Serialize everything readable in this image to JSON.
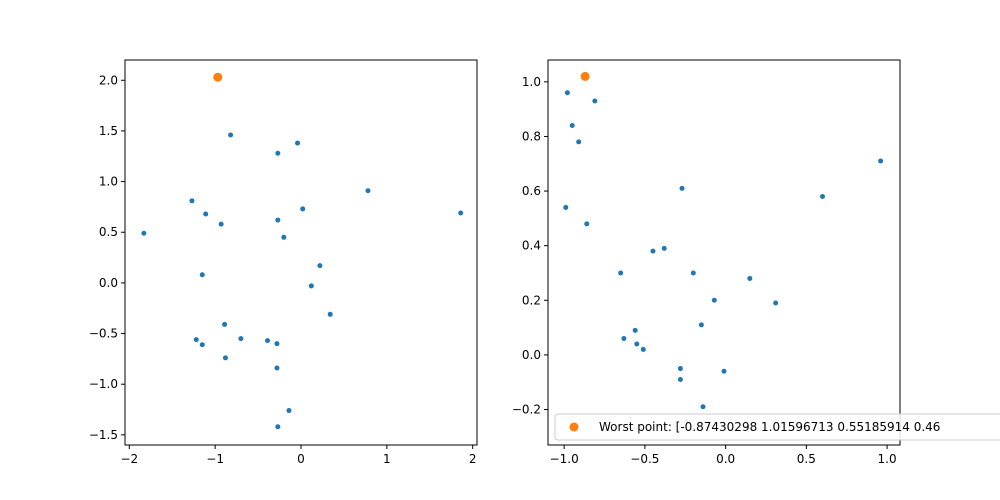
{
  "chart_data": [
    {
      "type": "scatter",
      "xlim": [
        -2.05,
        2.05
      ],
      "ylim": [
        -1.6,
        2.2
      ],
      "x_ticks": [
        -2,
        -1,
        0,
        1,
        2
      ],
      "x_tick_labels": [
        "−2",
        "−1",
        "0",
        "1",
        "2"
      ],
      "y_ticks": [
        -1.5,
        -1.0,
        -0.5,
        0.0,
        0.5,
        1.0,
        1.5,
        2.0
      ],
      "y_tick_labels": [
        "−1.5",
        "−1.0",
        "−0.5",
        "0.0",
        "0.5",
        "1.0",
        "1.5",
        "2.0"
      ],
      "grid": false,
      "series": [
        {
          "color": "#1f77b4",
          "marker": "small-dot",
          "points": [
            [
              -1.83,
              0.49
            ],
            [
              -1.27,
              0.81
            ],
            [
              -1.11,
              0.68
            ],
            [
              -0.93,
              0.58
            ],
            [
              -1.15,
              0.08
            ],
            [
              -0.82,
              1.46
            ],
            [
              -0.27,
              1.28
            ],
            [
              -0.04,
              1.38
            ],
            [
              0.02,
              0.73
            ],
            [
              -0.27,
              0.62
            ],
            [
              -0.2,
              0.45
            ],
            [
              0.78,
              0.91
            ],
            [
              1.86,
              0.69
            ],
            [
              0.22,
              0.17
            ],
            [
              0.12,
              -0.03
            ],
            [
              0.34,
              -0.31
            ],
            [
              -0.89,
              -0.41
            ],
            [
              -1.22,
              -0.56
            ],
            [
              -1.15,
              -0.61
            ],
            [
              -0.7,
              -0.55
            ],
            [
              -0.88,
              -0.74
            ],
            [
              -0.39,
              -0.57
            ],
            [
              -0.28,
              -0.6
            ],
            [
              -0.28,
              -0.84
            ],
            [
              -0.14,
              -1.26
            ],
            [
              -0.27,
              -1.42
            ]
          ]
        },
        {
          "color": "#ff7f0e",
          "marker": "large-dot",
          "points": [
            [
              -0.97,
              2.03
            ]
          ]
        }
      ]
    },
    {
      "type": "scatter",
      "xlim": [
        -1.1,
        1.08
      ],
      "ylim": [
        -0.33,
        1.08
      ],
      "x_ticks": [
        -1.0,
        -0.5,
        0.0,
        0.5,
        1.0
      ],
      "x_tick_labels": [
        "−1.0",
        "−0.5",
        "0.0",
        "0.5",
        "1.0"
      ],
      "y_ticks": [
        -0.2,
        0.0,
        0.2,
        0.4,
        0.6,
        0.8,
        1.0
      ],
      "y_tick_labels": [
        "−0.2",
        "0.0",
        "0.2",
        "0.4",
        "0.6",
        "0.8",
        "1.0"
      ],
      "grid": false,
      "legend": {
        "placement": "lower-right",
        "entries": [
          {
            "label": "Worst point: [-0.87430298  1.01596713  0.55185914  0.46",
            "color": "#ff7f0e"
          }
        ]
      },
      "series": [
        {
          "color": "#1f77b4",
          "marker": "small-dot",
          "points": [
            [
              -0.98,
              0.96
            ],
            [
              -0.95,
              0.84
            ],
            [
              -0.91,
              0.78
            ],
            [
              -0.81,
              0.93
            ],
            [
              -0.99,
              0.54
            ],
            [
              -0.86,
              0.48
            ],
            [
              -0.27,
              0.61
            ],
            [
              -0.45,
              0.38
            ],
            [
              -0.38,
              0.39
            ],
            [
              -0.65,
              0.3
            ],
            [
              -0.2,
              0.3
            ],
            [
              -0.07,
              0.2
            ],
            [
              -0.15,
              0.11
            ],
            [
              0.15,
              0.28
            ],
            [
              0.31,
              0.19
            ],
            [
              0.6,
              0.58
            ],
            [
              0.96,
              0.71
            ],
            [
              -0.56,
              0.09
            ],
            [
              -0.63,
              0.06
            ],
            [
              -0.55,
              0.04
            ],
            [
              -0.51,
              0.02
            ],
            [
              -0.28,
              -0.05
            ],
            [
              -0.28,
              -0.09
            ],
            [
              -0.01,
              -0.06
            ],
            [
              -0.14,
              -0.19
            ]
          ]
        },
        {
          "color": "#ff7f0e",
          "marker": "large-dot",
          "points": [
            [
              -0.87,
              1.02
            ]
          ]
        }
      ]
    }
  ]
}
